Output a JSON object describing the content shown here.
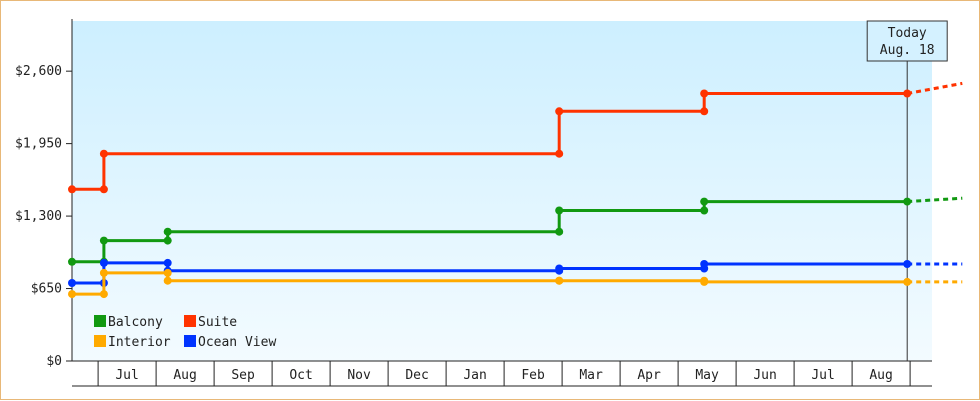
{
  "chart_data": {
    "type": "line",
    "step": true,
    "y_ticks": [
      {
        "value": 0,
        "label": "$0"
      },
      {
        "value": 650,
        "label": "$650"
      },
      {
        "value": 1300,
        "label": "$1,300"
      },
      {
        "value": 1950,
        "label": "$1,950"
      },
      {
        "value": 2600,
        "label": "$2,600"
      }
    ],
    "ylim": [
      0,
      3050
    ],
    "xlim": [
      0,
      15.35
    ],
    "months": [
      "Jul",
      "Aug",
      "Sep",
      "Oct",
      "Nov",
      "Dec",
      "Jan",
      "Feb",
      "Mar",
      "Apr",
      "May",
      "Jun",
      "Jul",
      "Aug"
    ],
    "today": {
      "line1": "Today",
      "line2": "Aug. 18",
      "x": 14.4
    },
    "series": [
      {
        "name": "Suite",
        "color": "#ff3300",
        "points": [
          [
            0,
            1540
          ],
          [
            0.55,
            1540
          ],
          [
            0.55,
            1860
          ],
          [
            8.4,
            1860
          ],
          [
            8.4,
            2240
          ],
          [
            10.9,
            2240
          ],
          [
            10.9,
            2400
          ],
          [
            14.4,
            2400
          ]
        ],
        "projection": [
          [
            14.4,
            2400
          ],
          [
            15.35,
            2490
          ]
        ]
      },
      {
        "name": "Balcony",
        "color": "#119911",
        "points": [
          [
            0,
            890
          ],
          [
            0.55,
            890
          ],
          [
            0.55,
            1080
          ],
          [
            1.65,
            1080
          ],
          [
            1.65,
            1160
          ],
          [
            8.4,
            1160
          ],
          [
            8.4,
            1350
          ],
          [
            10.9,
            1350
          ],
          [
            10.9,
            1430
          ],
          [
            14.4,
            1430
          ]
        ],
        "projection": [
          [
            14.4,
            1430
          ],
          [
            15.35,
            1460
          ]
        ]
      },
      {
        "name": "Ocean View",
        "color": "#0033ff",
        "points": [
          [
            0,
            700
          ],
          [
            0.55,
            700
          ],
          [
            0.55,
            880
          ],
          [
            1.65,
            880
          ],
          [
            1.65,
            810
          ],
          [
            8.4,
            810
          ],
          [
            8.4,
            830
          ],
          [
            10.9,
            830
          ],
          [
            10.9,
            870
          ],
          [
            14.4,
            870
          ]
        ],
        "projection": [
          [
            14.4,
            870
          ],
          [
            15.35,
            870
          ]
        ]
      },
      {
        "name": "Interior",
        "color": "#ffaa00",
        "points": [
          [
            0,
            600
          ],
          [
            0.55,
            600
          ],
          [
            0.55,
            790
          ],
          [
            1.65,
            790
          ],
          [
            1.65,
            720
          ],
          [
            8.4,
            720
          ],
          [
            8.4,
            720
          ],
          [
            10.9,
            720
          ],
          [
            10.9,
            710
          ],
          [
            14.4,
            710
          ]
        ],
        "projection": [
          [
            14.4,
            710
          ],
          [
            15.35,
            710
          ]
        ]
      }
    ],
    "legend": [
      {
        "name": "Balcony",
        "color": "#119911"
      },
      {
        "name": "Suite",
        "color": "#ff3300"
      },
      {
        "name": "Interior",
        "color": "#ffaa00"
      },
      {
        "name": "Ocean View",
        "color": "#0033ff"
      }
    ],
    "legend_position": "bottom-left",
    "grid": false
  }
}
